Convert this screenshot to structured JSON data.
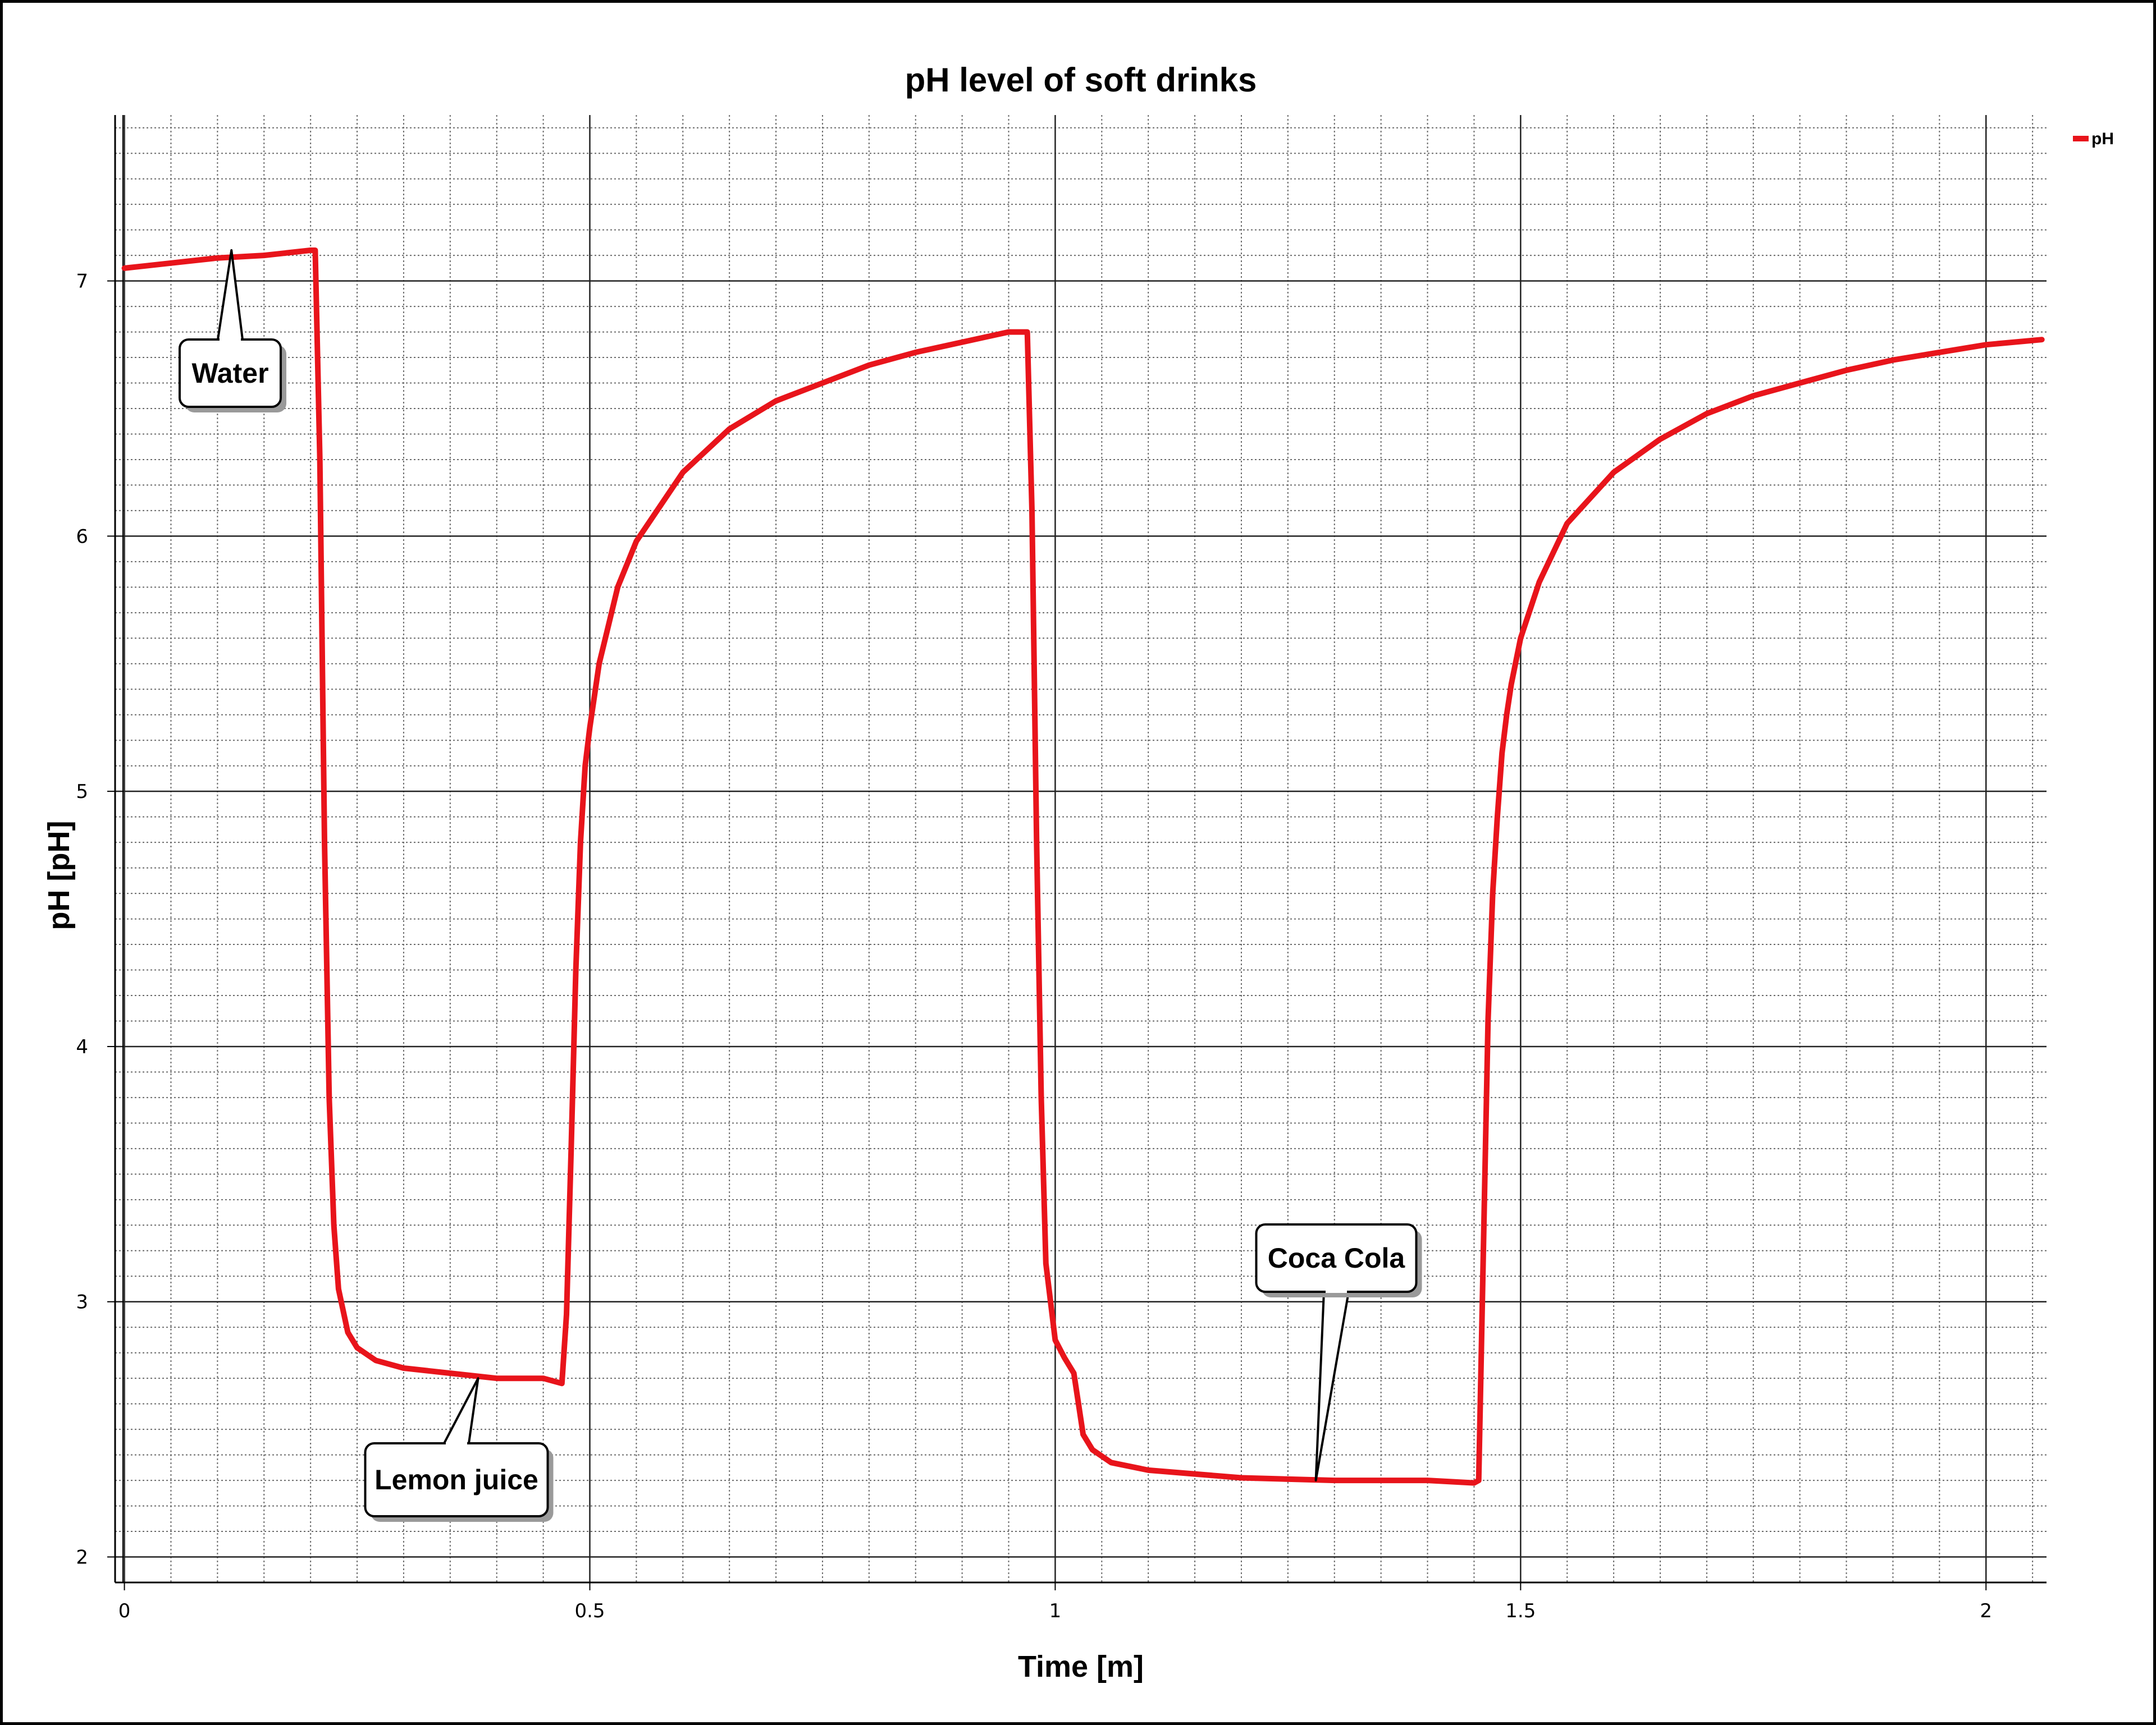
{
  "chart_data": {
    "type": "line",
    "title": "pH level of soft drinks",
    "xlabel": "Time [m]",
    "ylabel": "pH [pH]",
    "xlim": [
      -0.01,
      2.065
    ],
    "ylim": [
      1.9,
      7.65
    ],
    "x_ticks": [
      {
        "value": 0,
        "label": "0"
      },
      {
        "value": 0.5,
        "label": "0.5"
      },
      {
        "value": 1,
        "label": "1"
      },
      {
        "value": 1.5,
        "label": "1.5"
      },
      {
        "value": 2,
        "label": "2"
      }
    ],
    "y_ticks": [
      {
        "value": 2,
        "label": "2"
      },
      {
        "value": 3,
        "label": "3"
      },
      {
        "value": 4,
        "label": "4"
      },
      {
        "value": 5,
        "label": "5"
      },
      {
        "value": 6,
        "label": "6"
      },
      {
        "value": 7,
        "label": "7"
      }
    ],
    "grid": true,
    "legend": {
      "position": "top-right",
      "entries": [
        {
          "name": "pH",
          "color": "#e8141b"
        }
      ]
    },
    "series": [
      {
        "name": "pH",
        "color": "#e8141b",
        "x": [
          0,
          0.05,
          0.1,
          0.15,
          0.2,
          0.205,
          0.21,
          0.215,
          0.22,
          0.225,
          0.23,
          0.24,
          0.25,
          0.27,
          0.3,
          0.35,
          0.4,
          0.45,
          0.47,
          0.475,
          0.48,
          0.485,
          0.49,
          0.495,
          0.5,
          0.51,
          0.52,
          0.53,
          0.55,
          0.6,
          0.65,
          0.7,
          0.75,
          0.8,
          0.85,
          0.9,
          0.95,
          0.97,
          0.975,
          0.98,
          0.985,
          0.99,
          1.0,
          1.01,
          1.02,
          1.025,
          1.03,
          1.04,
          1.06,
          1.1,
          1.2,
          1.3,
          1.4,
          1.45,
          1.455,
          1.46,
          1.465,
          1.47,
          1.475,
          1.48,
          1.485,
          1.49,
          1.5,
          1.52,
          1.55,
          1.6,
          1.65,
          1.7,
          1.75,
          1.8,
          1.85,
          1.9,
          1.95,
          2.0,
          2.06
        ],
        "values": [
          7.05,
          7.07,
          7.09,
          7.1,
          7.12,
          7.12,
          6.3,
          4.8,
          3.8,
          3.3,
          3.05,
          2.88,
          2.82,
          2.77,
          2.74,
          2.72,
          2.7,
          2.7,
          2.68,
          2.95,
          3.6,
          4.3,
          4.8,
          5.1,
          5.25,
          5.5,
          5.65,
          5.8,
          5.98,
          6.25,
          6.42,
          6.53,
          6.6,
          6.67,
          6.72,
          6.76,
          6.8,
          6.8,
          6.1,
          4.8,
          3.8,
          3.15,
          2.85,
          2.78,
          2.72,
          2.6,
          2.48,
          2.42,
          2.37,
          2.34,
          2.31,
          2.3,
          2.3,
          2.29,
          2.3,
          3.2,
          4.1,
          4.6,
          4.9,
          5.15,
          5.3,
          5.42,
          5.6,
          5.82,
          6.05,
          6.25,
          6.38,
          6.48,
          6.55,
          6.6,
          6.65,
          6.69,
          6.72,
          6.75,
          6.77
        ]
      }
    ],
    "annotations": [
      {
        "text": "Water",
        "x": 0.115,
        "y": 7.12
      },
      {
        "text": "Lemon juice",
        "x": 0.38,
        "y": 2.7
      },
      {
        "text": "Coca Cola",
        "x": 1.28,
        "y": 2.3
      }
    ]
  }
}
